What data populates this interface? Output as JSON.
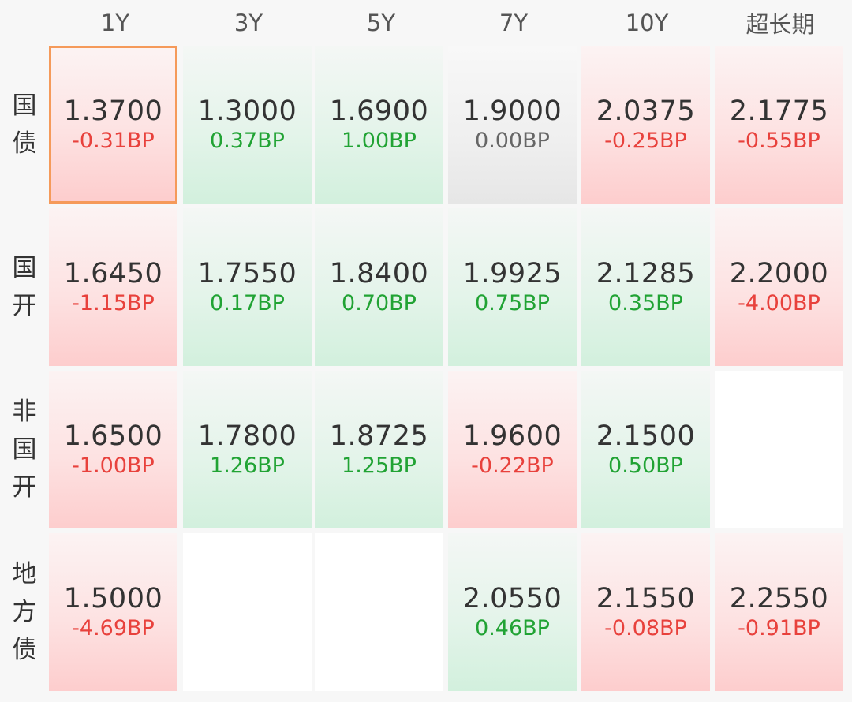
{
  "columns": [
    "1Y",
    "3Y",
    "5Y",
    "7Y",
    "10Y",
    "超长期"
  ],
  "rows": [
    {
      "label": [
        "国",
        "债"
      ],
      "cells": [
        {
          "rate": "1.3700",
          "change": "-0.31BP",
          "trend": "up",
          "selected": true
        },
        {
          "rate": "1.3000",
          "change": "0.37BP",
          "trend": "down"
        },
        {
          "rate": "1.6900",
          "change": "1.00BP",
          "trend": "down"
        },
        {
          "rate": "1.9000",
          "change": "0.00BP",
          "trend": "flat"
        },
        {
          "rate": "2.0375",
          "change": "-0.25BP",
          "trend": "up"
        },
        {
          "rate": "2.1775",
          "change": "-0.55BP",
          "trend": "up"
        }
      ]
    },
    {
      "label": [
        "国",
        "开"
      ],
      "cells": [
        {
          "rate": "1.6450",
          "change": "-1.15BP",
          "trend": "up"
        },
        {
          "rate": "1.7550",
          "change": "0.17BP",
          "trend": "down"
        },
        {
          "rate": "1.8400",
          "change": "0.70BP",
          "trend": "down"
        },
        {
          "rate": "1.9925",
          "change": "0.75BP",
          "trend": "down"
        },
        {
          "rate": "2.1285",
          "change": "0.35BP",
          "trend": "down"
        },
        {
          "rate": "2.2000",
          "change": "-4.00BP",
          "trend": "up"
        }
      ]
    },
    {
      "label": [
        "非",
        "国",
        "开"
      ],
      "cells": [
        {
          "rate": "1.6500",
          "change": "-1.00BP",
          "trend": "up"
        },
        {
          "rate": "1.7800",
          "change": "1.26BP",
          "trend": "down"
        },
        {
          "rate": "1.8725",
          "change": "1.25BP",
          "trend": "down"
        },
        {
          "rate": "1.9600",
          "change": "-0.22BP",
          "trend": "up"
        },
        {
          "rate": "2.1500",
          "change": "0.50BP",
          "trend": "down"
        },
        null
      ]
    },
    {
      "label": [
        "地",
        "方",
        "债"
      ],
      "cells": [
        {
          "rate": "1.5000",
          "change": "-4.69BP",
          "trend": "up"
        },
        null,
        null,
        {
          "rate": "2.0550",
          "change": "0.46BP",
          "trend": "down"
        },
        {
          "rate": "2.1550",
          "change": "-0.08BP",
          "trend": "up"
        },
        {
          "rate": "2.2550",
          "change": "-0.91BP",
          "trend": "up"
        }
      ]
    }
  ],
  "colors": {
    "up": "#e8413c",
    "down": "#21a334",
    "flat": "#666666",
    "selected_border": "#f59a5a"
  }
}
